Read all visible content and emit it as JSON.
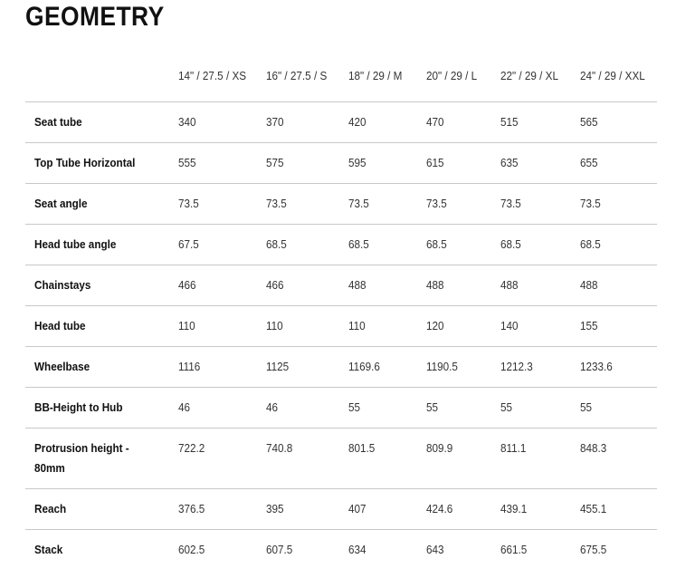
{
  "title": "GEOMETRY",
  "columns": [
    "14\" / 27.5 / XS",
    "16\" / 27.5 / S",
    "18\" / 29 / M",
    "20\" / 29 / L",
    "22\" / 29 / XL",
    "24\" / 29 / XXL"
  ],
  "rows": [
    {
      "label": "Seat tube",
      "values": [
        "340",
        "370",
        "420",
        "470",
        "515",
        "565"
      ]
    },
    {
      "label": "Top Tube Horizontal",
      "values": [
        "555",
        "575",
        "595",
        "615",
        "635",
        "655"
      ]
    },
    {
      "label": "Seat angle",
      "values": [
        "73.5",
        "73.5",
        "73.5",
        "73.5",
        "73.5",
        "73.5"
      ]
    },
    {
      "label": "Head tube angle",
      "values": [
        "67.5",
        "68.5",
        "68.5",
        "68.5",
        "68.5",
        "68.5"
      ]
    },
    {
      "label": "Chainstays",
      "values": [
        "466",
        "466",
        "488",
        "488",
        "488",
        "488"
      ]
    },
    {
      "label": "Head tube",
      "values": [
        "110",
        "110",
        "110",
        "120",
        "140",
        "155"
      ]
    },
    {
      "label": "Wheelbase",
      "values": [
        "1116",
        "1125",
        "1169.6",
        "1190.5",
        "1212.3",
        "1233.6"
      ]
    },
    {
      "label": "BB-Height to Hub",
      "values": [
        "46",
        "46",
        "55",
        "55",
        "55",
        "55"
      ]
    },
    {
      "label": "Protrusion height - 80mm",
      "values": [
        "722.2",
        "740.8",
        "801.5",
        "809.9",
        "811.1",
        "848.3"
      ]
    },
    {
      "label": "Reach",
      "values": [
        "376.5",
        "395",
        "407",
        "424.6",
        "439.1",
        "455.1"
      ]
    },
    {
      "label": "Stack",
      "values": [
        "602.5",
        "607.5",
        "634",
        "643",
        "661.5",
        "675.5"
      ]
    }
  ]
}
